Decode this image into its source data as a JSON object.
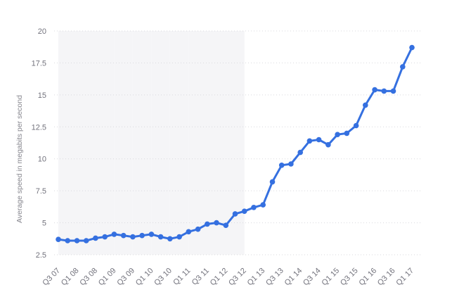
{
  "chart": {
    "background_color": "#ffffff",
    "accent_color": "#3570e0",
    "band_color": "#f5f5f7",
    "grid_color": "#d9d9de",
    "tick_color": "#72727c",
    "axis_title_color": "#86868e"
  },
  "chart_data": {
    "type": "line",
    "title": "",
    "xlabel": "",
    "ylabel": "Average speed in megabits per second",
    "categories": [
      "Q3 07",
      "Q4 07",
      "Q1 08",
      "Q2 08",
      "Q3 08",
      "Q4 08",
      "Q1 09",
      "Q2 09",
      "Q3 09",
      "Q4 09",
      "Q1 10",
      "Q2 10",
      "Q3 10",
      "Q4 10",
      "Q1 11",
      "Q2 11",
      "Q3 11",
      "Q4 11",
      "Q1 12",
      "Q2 12",
      "Q3 12",
      "Q4 12",
      "Q1 13",
      "Q2 13",
      "Q3 13",
      "Q4 13",
      "Q1 14",
      "Q2 14",
      "Q3 14",
      "Q4 14",
      "Q1 15",
      "Q2 15",
      "Q3 15",
      "Q4 15",
      "Q1 16",
      "Q2 16",
      "Q3 16",
      "Q4 16",
      "Q1 17"
    ],
    "values": [
      3.7,
      3.6,
      3.6,
      3.6,
      3.8,
      3.9,
      4.1,
      4.0,
      3.9,
      4.0,
      4.1,
      3.9,
      3.75,
      3.9,
      4.3,
      4.5,
      4.9,
      5.0,
      4.8,
      5.7,
      5.9,
      6.2,
      6.4,
      8.2,
      9.5,
      9.6,
      10.5,
      11.4,
      11.5,
      11.1,
      11.9,
      12.0,
      12.6,
      14.2,
      15.4,
      15.3,
      15.3,
      17.2,
      18.7
    ],
    "x_tick_labels_shown": [
      "Q3 07",
      "Q1 08",
      "Q3 08",
      "Q1 09",
      "Q3 09",
      "Q1 10",
      "Q3 10",
      "Q1 11",
      "Q3 11",
      "Q1 12",
      "Q3 12",
      "Q1 13",
      "Q3 13",
      "Q1 14",
      "Q3 14",
      "Q1 15",
      "Q3 15",
      "Q1 16",
      "Q3 16",
      "Q1 17"
    ],
    "x_tick_every": 2,
    "yticks": [
      2.5,
      5,
      7.5,
      10,
      12.5,
      15,
      17.5,
      20
    ],
    "ylim": [
      2.5,
      20
    ],
    "grid": "horizontal-dotted",
    "plot_bands": "alternating vertical stripes, one per two quarters",
    "legend": "none",
    "line_color": "#3570e0",
    "marker": "circle"
  }
}
